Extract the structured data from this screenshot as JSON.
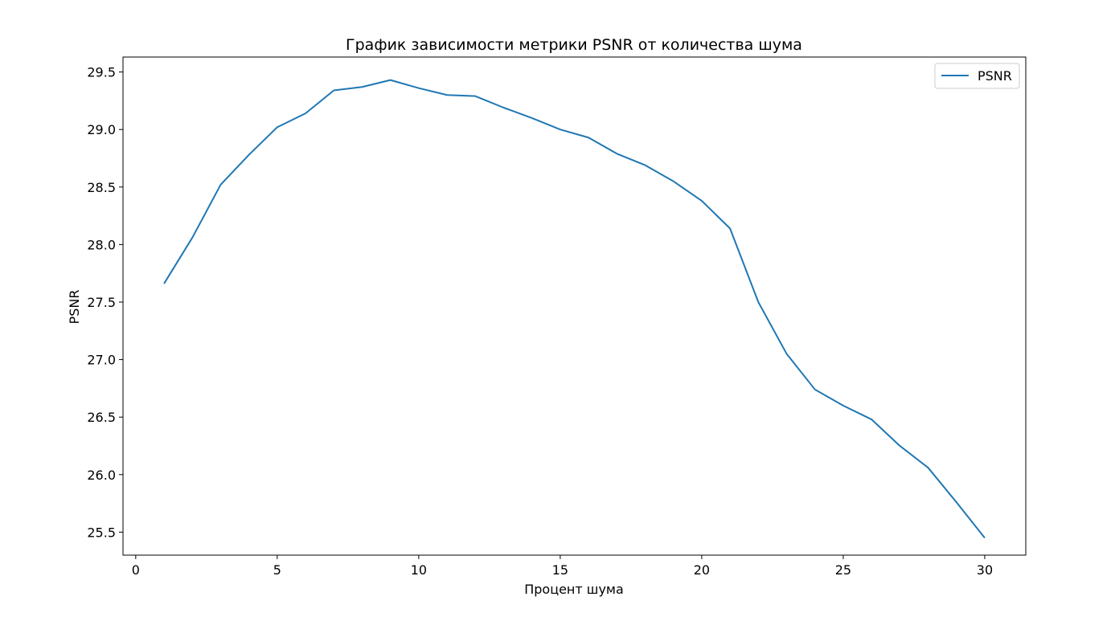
{
  "chart_data": {
    "type": "line",
    "title": "График зависимости метрики PSNR от количества шума",
    "xlabel": "Процент шума",
    "ylabel": "PSNR",
    "xlim": [
      -0.45,
      31.45
    ],
    "ylim": [
      25.3,
      29.63
    ],
    "xticks": [
      0,
      5,
      10,
      15,
      20,
      25,
      30
    ],
    "xtick_labels": [
      "0",
      "5",
      "10",
      "15",
      "20",
      "25",
      "30"
    ],
    "yticks": [
      25.5,
      26.0,
      26.5,
      27.0,
      27.5,
      28.0,
      28.5,
      29.0,
      29.5
    ],
    "ytick_labels": [
      "25.5",
      "26.0",
      "26.5",
      "27.0",
      "27.5",
      "28.0",
      "28.5",
      "29.0",
      "29.5"
    ],
    "grid": false,
    "legend": {
      "position": "top-right",
      "entries": [
        "PSNR"
      ]
    },
    "series": [
      {
        "name": "PSNR",
        "color": "#1f77b4",
        "x": [
          1,
          2,
          3,
          4,
          5,
          6,
          7,
          8,
          9,
          10,
          11,
          12,
          13,
          14,
          15,
          16,
          17,
          18,
          19,
          20,
          21,
          22,
          23,
          24,
          25,
          26,
          27,
          28,
          29,
          30
        ],
        "y": [
          27.66,
          28.06,
          28.52,
          28.78,
          29.02,
          29.14,
          29.34,
          29.37,
          29.43,
          29.36,
          29.3,
          29.29,
          29.19,
          29.1,
          29.0,
          28.93,
          28.79,
          28.69,
          28.55,
          28.38,
          28.14,
          27.5,
          27.05,
          26.74,
          26.6,
          26.48,
          26.25,
          26.06,
          25.76,
          25.45
        ]
      }
    ]
  }
}
